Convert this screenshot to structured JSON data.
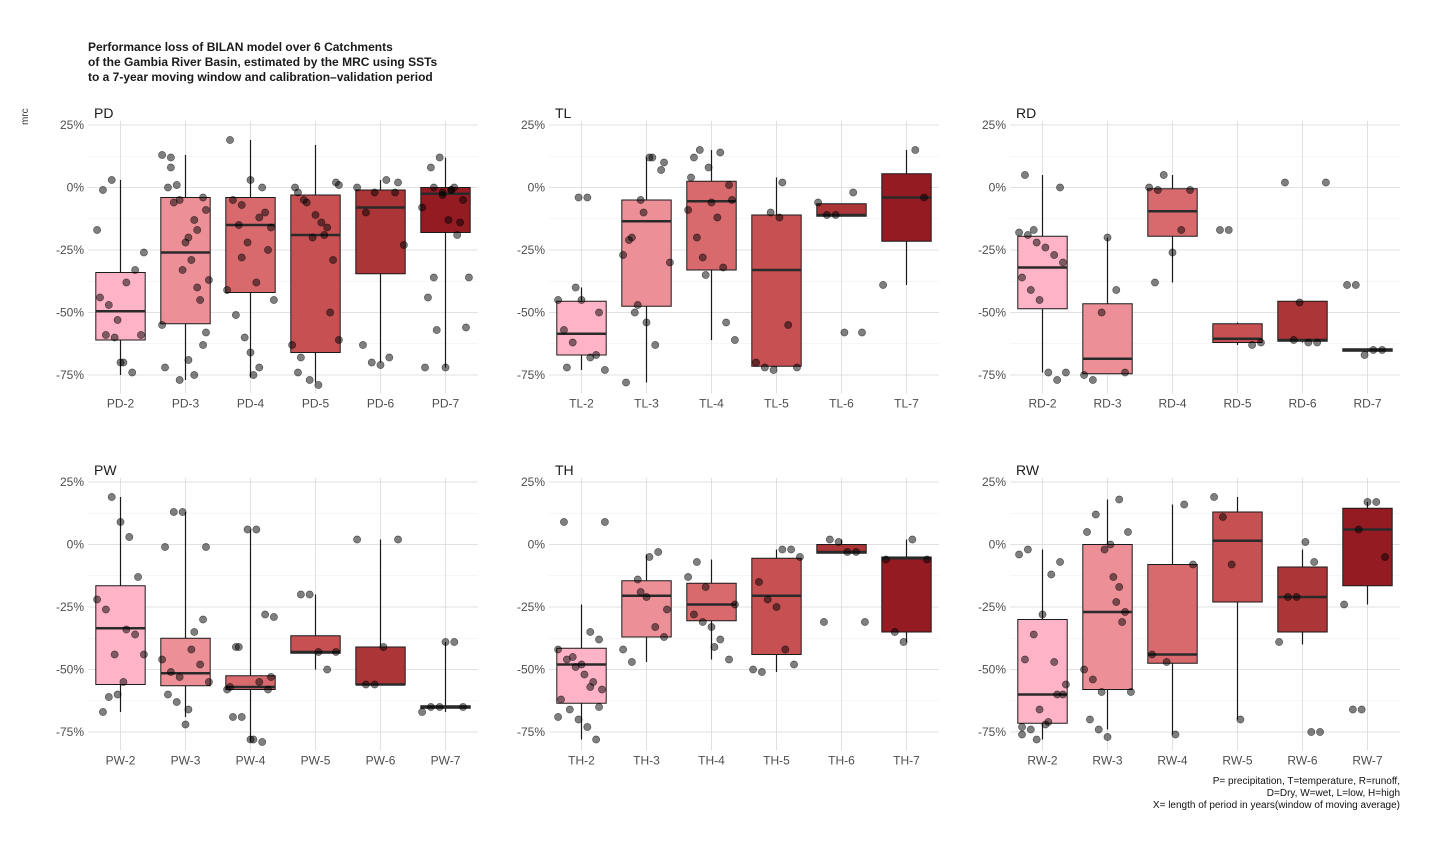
{
  "title": "Performance loss of BILAN model over 6 Catchments\nof the Gambia River Basin, estimated by the MRC using SSTs\nto a 7-year moving window and calibration–validation period",
  "ylabel": "mrc",
  "caption": "P= precipitation, T=temperature, R=runoff,\nD=Dry, W=wet, L=low, H=high\nX= length of period in years(window of moving average)",
  "colors": [
    "#ffb3c6",
    "#ec8f96",
    "#d86a6e",
    "#c65052",
    "#ab3537",
    "#941b22"
  ],
  "chart_data": [
    {
      "type": "box",
      "panel": "PD",
      "categories": [
        "PD-2",
        "PD-3",
        "PD-4",
        "PD-5",
        "PD-6",
        "PD-7"
      ],
      "yticks": [
        "25%",
        "0%",
        "-25%",
        "-50%",
        "-75%"
      ],
      "ylim": [
        -0.8,
        0.25
      ],
      "boxes": [
        {
          "q1": -0.61,
          "median": -0.495,
          "q3": -0.34,
          "lo": -0.75,
          "hi": 0.03
        },
        {
          "q1": -0.545,
          "median": -0.26,
          "q3": -0.04,
          "lo": -0.77,
          "hi": 0.13
        },
        {
          "q1": -0.42,
          "median": -0.15,
          "q3": -0.04,
          "lo": -0.76,
          "hi": 0.19
        },
        {
          "q1": -0.66,
          "median": -0.19,
          "q3": -0.03,
          "lo": -0.78,
          "hi": 0.17
        },
        {
          "q1": -0.345,
          "median": -0.08,
          "q3": -0.01,
          "lo": -0.7,
          "hi": 0.03
        },
        {
          "q1": -0.18,
          "median": -0.025,
          "q3": 0.0,
          "lo": -0.72,
          "hi": 0.12
        }
      ],
      "points": [
        [
          -0.17,
          -0.59,
          -0.6,
          -0.7,
          -0.74,
          -0.59,
          -0.44,
          -0.47,
          -0.53,
          -0.38,
          -0.33,
          -0.26,
          -0.01,
          0.03,
          -0.7
        ],
        [
          -0.75,
          -0.04,
          0.13,
          0.08,
          -0.05,
          -0.2,
          -0.4,
          -0.58,
          -0.72,
          -0.06,
          -0.33,
          -0.29,
          -0.45,
          -0.37,
          0.0,
          0.01,
          -0.22,
          -0.13,
          -0.63,
          -0.55,
          0.12,
          -0.77,
          -0.69,
          -0.17,
          -0.09
        ],
        [
          -0.07,
          0.03,
          -0.12,
          -0.25,
          -0.41,
          -0.51,
          -0.6,
          -0.75,
          0.0,
          -0.16,
          0.19,
          -0.15,
          -0.22,
          -0.38,
          -0.1,
          -0.45,
          -0.05,
          -0.28,
          -0.66,
          -0.72
        ],
        [
          0.01,
          -0.02,
          -0.06,
          -0.11,
          -0.19,
          -0.29,
          -0.63,
          -0.68,
          -0.77,
          -0.79,
          -0.16,
          0.02,
          0.0,
          -0.05,
          -0.2,
          -0.14,
          -0.5,
          -0.61,
          -0.74
        ],
        [
          0.03,
          -0.02,
          -0.23,
          -0.63,
          -0.7,
          -0.71,
          -0.68,
          0.02,
          0.0,
          -0.1,
          -0.02
        ],
        [
          0.0,
          -0.03,
          -0.01,
          -0.14,
          -0.36,
          -0.44,
          -0.57,
          -0.72,
          0.0,
          -0.05,
          -0.08,
          0.08,
          0.12,
          -0.13,
          -0.19,
          -0.56,
          -0.72,
          -0.36,
          -0.02,
          -0.01
        ]
      ]
    },
    {
      "type": "box",
      "panel": "TL",
      "categories": [
        "TL-2",
        "TL-3",
        "TL-4",
        "TL-5",
        "TL-6",
        "TL-7"
      ],
      "yticks": [
        "25%",
        "0%",
        "-25%",
        "-50%",
        "-75%"
      ],
      "ylim": [
        -0.8,
        0.25
      ],
      "boxes": [
        {
          "q1": -0.67,
          "median": -0.585,
          "q3": -0.455,
          "lo": -0.73,
          "hi": -0.4
        },
        {
          "q1": -0.475,
          "median": -0.135,
          "q3": -0.05,
          "lo": -0.78,
          "hi": 0.12
        },
        {
          "q1": -0.33,
          "median": -0.055,
          "q3": 0.025,
          "lo": -0.61,
          "hi": 0.15
        },
        {
          "q1": -0.715,
          "median": -0.33,
          "q3": -0.11,
          "lo": -0.72,
          "hi": 0.04
        },
        {
          "q1": -0.115,
          "median": -0.11,
          "q3": -0.065,
          "lo": -0.115,
          "hi": -0.065
        },
        {
          "q1": -0.215,
          "median": -0.04,
          "q3": 0.055,
          "lo": -0.39,
          "hi": 0.15
        }
      ],
      "points": [
        [
          -0.04,
          -0.04,
          -0.67,
          -0.73,
          -0.57,
          -0.62,
          -0.45,
          -0.68,
          -0.5,
          -0.45,
          -0.72,
          -0.4
        ],
        [
          -0.78,
          -0.5,
          -0.1,
          0.12,
          0.07,
          -0.3,
          -0.21,
          -0.47,
          -0.54,
          -0.63,
          0.1,
          -0.27,
          -0.2,
          -0.05,
          0.12
        ],
        [
          -0.32,
          -0.05,
          0.04,
          0.15,
          0.08,
          -0.12,
          -0.54,
          -0.61,
          0.12,
          -0.28,
          -0.06,
          0.14,
          0.01,
          -0.09,
          -0.2,
          -0.35
        ],
        [
          -0.1,
          -0.12,
          -0.55,
          -0.72,
          -0.7,
          -0.72,
          -0.73,
          0.02
        ],
        [
          -0.06,
          -0.11,
          -0.11,
          -0.58,
          -0.02,
          -0.58
        ],
        [
          0.15,
          -0.04,
          -0.39
        ]
      ]
    },
    {
      "type": "box",
      "panel": "RD",
      "categories": [
        "RD-2",
        "RD-3",
        "RD-4",
        "RD-5",
        "RD-6",
        "RD-7"
      ],
      "yticks": [
        "25%",
        "0%",
        "-25%",
        "-50%",
        "-75%"
      ],
      "ylim": [
        -0.8,
        0.25
      ],
      "boxes": [
        {
          "q1": -0.485,
          "median": -0.32,
          "q3": -0.195,
          "lo": -0.74,
          "hi": 0.05
        },
        {
          "q1": -0.745,
          "median": -0.685,
          "q3": -0.465,
          "lo": -0.745,
          "hi": -0.2
        },
        {
          "q1": -0.195,
          "median": -0.095,
          "q3": -0.005,
          "lo": -0.38,
          "hi": 0.05
        },
        {
          "q1": -0.62,
          "median": -0.605,
          "q3": -0.545,
          "lo": -0.63,
          "hi": -0.54
        },
        {
          "q1": -0.615,
          "median": -0.61,
          "q3": -0.455,
          "lo": -0.62,
          "hi": -0.455
        },
        {
          "q1": -0.655,
          "median": -0.65,
          "q3": -0.645,
          "lo": -0.66,
          "hi": -0.645
        }
      ],
      "points": [
        [
          0.0,
          -0.18,
          -0.19,
          -0.22,
          -0.24,
          -0.27,
          -0.3,
          -0.36,
          -0.41,
          -0.45,
          -0.74,
          -0.77,
          -0.74,
          0.05,
          -0.17
        ],
        [
          -0.2,
          -0.41,
          -0.74,
          -0.75,
          -0.77,
          -0.5
        ],
        [
          -0.38,
          0.05,
          -0.26,
          -0.17,
          -0.01,
          0.0,
          -0.01
        ],
        [
          -0.63,
          -0.62,
          -0.17,
          -0.17
        ],
        [
          -0.46,
          -0.62,
          -0.62,
          0.02,
          0.02,
          -0.61
        ],
        [
          -0.39,
          -0.39,
          -0.67,
          -0.65,
          -0.65
        ]
      ]
    },
    {
      "type": "box",
      "panel": "PW",
      "categories": [
        "PW-2",
        "PW-3",
        "PW-4",
        "PW-5",
        "PW-6",
        "PW-7"
      ],
      "yticks": [
        "25%",
        "0%",
        "-25%",
        "-50%",
        "-75%"
      ],
      "ylim": [
        -0.8,
        0.25
      ],
      "boxes": [
        {
          "q1": -0.56,
          "median": -0.335,
          "q3": -0.165,
          "lo": -0.67,
          "hi": 0.19
        },
        {
          "q1": -0.565,
          "median": -0.515,
          "q3": -0.375,
          "lo": -0.69,
          "hi": 0.13
        },
        {
          "q1": -0.58,
          "median": -0.57,
          "q3": -0.525,
          "lo": -0.79,
          "hi": 0.06
        },
        {
          "q1": -0.435,
          "median": -0.43,
          "q3": -0.365,
          "lo": -0.5,
          "hi": -0.2
        },
        {
          "q1": -0.56,
          "median": -0.56,
          "q3": -0.41,
          "lo": -0.56,
          "hi": 0.02
        },
        {
          "q1": -0.655,
          "median": -0.65,
          "q3": -0.645,
          "lo": -0.67,
          "hi": -0.39
        }
      ],
      "points": [
        [
          -0.61,
          -0.6,
          -0.34,
          -0.36,
          -0.44,
          -0.67,
          0.19,
          0.09,
          0.03,
          -0.13,
          -0.22,
          -0.26,
          -0.44,
          -0.55
        ],
        [
          -0.01,
          -0.01,
          0.13,
          0.13,
          -0.42,
          -0.48,
          -0.55,
          -0.6,
          -0.63,
          -0.72,
          -0.35,
          -0.3,
          -0.46,
          -0.51,
          -0.53,
          -0.66
        ],
        [
          -0.78,
          -0.79,
          -0.53,
          -0.57,
          -0.41,
          0.06,
          0.06,
          -0.28,
          -0.29,
          -0.69,
          -0.69,
          -0.78,
          -0.55,
          -0.58,
          -0.58,
          -0.41
        ],
        [
          -0.2,
          -0.2,
          -0.43,
          -0.5,
          -0.43
        ],
        [
          0.02,
          0.02,
          -0.56,
          -0.56,
          -0.41
        ],
        [
          -0.39,
          -0.39,
          -0.65,
          -0.67,
          -0.65,
          -0.65
        ]
      ]
    },
    {
      "type": "box",
      "panel": "TH",
      "categories": [
        "TH-2",
        "TH-3",
        "TH-4",
        "TH-5",
        "TH-6",
        "TH-7"
      ],
      "yticks": [
        "25%",
        "0%",
        "-25%",
        "-50%",
        "-75%"
      ],
      "ylim": [
        -0.8,
        0.25
      ],
      "boxes": [
        {
          "q1": -0.635,
          "median": -0.48,
          "q3": -0.415,
          "lo": -0.78,
          "hi": -0.24
        },
        {
          "q1": -0.37,
          "median": -0.205,
          "q3": -0.145,
          "lo": -0.47,
          "hi": -0.04
        },
        {
          "q1": -0.305,
          "median": -0.24,
          "q3": -0.155,
          "lo": -0.46,
          "hi": -0.06
        },
        {
          "q1": -0.44,
          "median": -0.205,
          "q3": -0.055,
          "lo": -0.51,
          "hi": -0.02
        },
        {
          "q1": -0.035,
          "median": -0.03,
          "q3": 0.0,
          "lo": -0.035,
          "hi": 0.02
        },
        {
          "q1": -0.35,
          "median": -0.055,
          "q3": -0.05,
          "lo": -0.39,
          "hi": 0.02
        }
      ],
      "points": [
        [
          -0.35,
          -0.38,
          -0.42,
          -0.46,
          -0.49,
          -0.52,
          -0.55,
          -0.58,
          -0.62,
          -0.66,
          -0.7,
          -0.73,
          -0.78,
          0.09,
          0.09,
          -0.45,
          -0.48,
          -0.57,
          -0.65,
          -0.69
        ],
        [
          -0.14,
          -0.21,
          -0.33,
          -0.37,
          -0.42,
          -0.47,
          -0.19,
          -0.05,
          -0.03,
          -0.26
        ],
        [
          -0.24,
          -0.28,
          -0.31,
          -0.33,
          -0.38,
          -0.46,
          -0.13,
          -0.07,
          -0.17,
          -0.41
        ],
        [
          -0.02,
          -0.02,
          -0.05,
          -0.15,
          -0.22,
          -0.25,
          -0.42,
          -0.48,
          -0.5,
          -0.51
        ],
        [
          0.02,
          0.01,
          -0.03,
          -0.03,
          -0.31,
          -0.31
        ],
        [
          -0.06,
          -0.06,
          -0.35,
          -0.39,
          0.02
        ]
      ]
    },
    {
      "type": "box",
      "panel": "RW",
      "categories": [
        "RW-2",
        "RW-3",
        "RW-4",
        "RW-5",
        "RW-6",
        "RW-7"
      ],
      "yticks": [
        "25%",
        "0%",
        "-25%",
        "-50%",
        "-75%"
      ],
      "ylim": [
        -0.8,
        0.25
      ],
      "boxes": [
        {
          "q1": -0.715,
          "median": -0.6,
          "q3": -0.3,
          "lo": -0.78,
          "hi": -0.02
        },
        {
          "q1": -0.58,
          "median": -0.27,
          "q3": 0.0,
          "lo": -0.74,
          "hi": 0.18
        },
        {
          "q1": -0.475,
          "median": -0.44,
          "q3": -0.08,
          "lo": -0.76,
          "hi": 0.16
        },
        {
          "q1": -0.23,
          "median": 0.015,
          "q3": 0.13,
          "lo": -0.7,
          "hi": 0.19
        },
        {
          "q1": -0.35,
          "median": -0.21,
          "q3": -0.09,
          "lo": -0.4,
          "hi": -0.02
        },
        {
          "q1": -0.165,
          "median": 0.06,
          "q3": 0.145,
          "lo": -0.24,
          "hi": 0.17
        }
      ],
      "points": [
        [
          -0.73,
          -0.74,
          -0.66,
          -0.71,
          -0.6,
          -0.56,
          -0.46,
          -0.36,
          -0.28,
          -0.12,
          -0.07,
          -0.04,
          -0.02,
          -0.78,
          -0.72,
          -0.47,
          -0.6,
          -0.76
        ],
        [
          0.18,
          0.05,
          0.05,
          0.12,
          -0.02,
          -0.13,
          -0.31,
          -0.59,
          -0.7,
          -0.74,
          -0.77,
          -0.23,
          -0.27,
          -0.5,
          -0.54,
          -0.59,
          0.0,
          -0.17
        ],
        [
          -0.47,
          -0.76,
          0.16,
          -0.08,
          -0.44
        ],
        [
          0.19,
          0.11,
          -0.08,
          -0.7
        ],
        [
          -0.75,
          -0.75,
          -0.39,
          -0.21,
          -0.21,
          0.01,
          -0.07
        ],
        [
          0.06,
          0.17,
          0.17,
          -0.05,
          -0.24,
          -0.66,
          -0.66
        ]
      ]
    }
  ]
}
